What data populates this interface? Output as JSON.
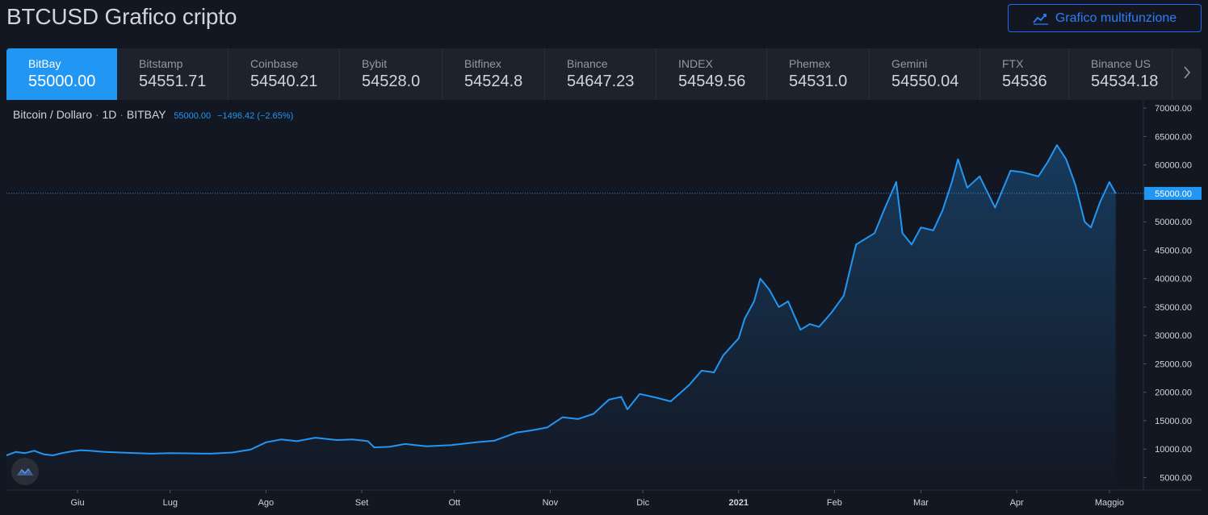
{
  "page": {
    "title": "BTCUSD Grafico cripto",
    "multi_chart_button": "Grafico multifunzione"
  },
  "exchanges": [
    {
      "name": "BitBay",
      "price": "55000.00",
      "active": true
    },
    {
      "name": "Bitstamp",
      "price": "54551.71"
    },
    {
      "name": "Coinbase",
      "price": "54540.21"
    },
    {
      "name": "Bybit",
      "price": "54528.0"
    },
    {
      "name": "Bitfinex",
      "price": "54524.8"
    },
    {
      "name": "Binance",
      "price": "54647.23"
    },
    {
      "name": "INDEX",
      "price": "54549.56"
    },
    {
      "name": "Phemex",
      "price": "54531.0"
    },
    {
      "name": "Gemini",
      "price": "54550.04"
    },
    {
      "name": "FTX",
      "price": "54536"
    },
    {
      "name": "Binance US",
      "price": "54534.18"
    }
  ],
  "legend": {
    "symbol": "Bitcoin / Dollaro",
    "interval": "1D",
    "exchange": "BITBAY",
    "last": "55000.00",
    "change": "−1496.42 (−2.65%)"
  },
  "icons": {
    "multi_chart": "chart-line-icon",
    "next": "chevron-right-icon",
    "logo": "tradingview-logo-icon"
  },
  "colors": {
    "background": "#131722",
    "line": "#2196f3",
    "active_tab": "#2196f3",
    "price_label_bg": "#2196f3",
    "grid": "#2a2e39"
  },
  "chart_data": {
    "type": "area",
    "title": "",
    "xlabel": "",
    "ylabel": "",
    "ylim": [
      2800,
      71300
    ],
    "yticks": [
      5000,
      10000,
      15000,
      20000,
      25000,
      30000,
      35000,
      40000,
      45000,
      50000,
      55000,
      60000,
      65000,
      70000
    ],
    "ytick_labels": [
      "5000.00",
      "10000.00",
      "15000.00",
      "20000.00",
      "25000.00",
      "30000.00",
      "35000.00",
      "40000.00",
      "45000.00",
      "50000.00",
      "55000.00",
      "60000.00",
      "65000.00",
      "70000.00"
    ],
    "xlim": [
      "2020-05-09",
      "2021-05-12"
    ],
    "xticks": [
      {
        "date": "2020-06-01",
        "label": "Giu",
        "bold": false
      },
      {
        "date": "2020-07-01",
        "label": "Lug",
        "bold": false
      },
      {
        "date": "2020-08-01",
        "label": "Ago",
        "bold": false
      },
      {
        "date": "2020-09-01",
        "label": "Set",
        "bold": false
      },
      {
        "date": "2020-10-01",
        "label": "Ott",
        "bold": false
      },
      {
        "date": "2020-11-01",
        "label": "Nov",
        "bold": false
      },
      {
        "date": "2020-12-01",
        "label": "Dic",
        "bold": false
      },
      {
        "date": "2021-01-01",
        "label": "2021",
        "bold": true
      },
      {
        "date": "2021-02-01",
        "label": "Feb",
        "bold": false
      },
      {
        "date": "2021-03-01",
        "label": "Mar",
        "bold": false
      },
      {
        "date": "2021-04-01",
        "label": "Apr",
        "bold": false
      },
      {
        "date": "2021-05-01",
        "label": "Maggio",
        "bold": false
      }
    ],
    "current_price": 55000,
    "current_price_label": "55000.00",
    "series": [
      {
        "x": [
          "2020-05-09",
          "2020-05-12",
          "2020-05-15",
          "2020-05-18",
          "2020-05-21",
          "2020-05-24",
          "2020-05-27",
          "2020-05-30",
          "2020-06-02",
          "2020-06-05",
          "2020-06-10",
          "2020-06-15",
          "2020-06-20",
          "2020-06-25",
          "2020-07-01",
          "2020-07-07",
          "2020-07-14",
          "2020-07-21",
          "2020-07-27",
          "2020-08-01",
          "2020-08-06",
          "2020-08-11",
          "2020-08-17",
          "2020-08-24",
          "2020-08-29",
          "2020-09-03",
          "2020-09-05",
          "2020-09-10",
          "2020-09-15",
          "2020-09-22",
          "2020-09-30",
          "2020-10-08",
          "2020-10-14",
          "2020-10-21",
          "2020-10-26",
          "2020-10-31",
          "2020-11-05",
          "2020-11-10",
          "2020-11-15",
          "2020-11-20",
          "2020-11-24",
          "2020-11-26",
          "2020-11-30",
          "2020-12-05",
          "2020-12-10",
          "2020-12-16",
          "2020-12-20",
          "2020-12-24",
          "2020-12-27",
          "2021-01-01",
          "2021-01-03",
          "2021-01-06",
          "2021-01-08",
          "2021-01-11",
          "2021-01-14",
          "2021-01-17",
          "2021-01-21",
          "2021-01-24",
          "2021-01-27",
          "2021-01-31",
          "2021-02-04",
          "2021-02-08",
          "2021-02-11",
          "2021-02-14",
          "2021-02-17",
          "2021-02-21",
          "2021-02-23",
          "2021-02-26",
          "2021-03-01",
          "2021-03-05",
          "2021-03-08",
          "2021-03-11",
          "2021-03-13",
          "2021-03-16",
          "2021-03-20",
          "2021-03-25",
          "2021-03-30",
          "2021-04-03",
          "2021-04-08",
          "2021-04-11",
          "2021-04-14",
          "2021-04-17",
          "2021-04-20",
          "2021-04-23",
          "2021-04-25",
          "2021-04-28",
          "2021-05-01",
          "2021-05-03"
        ],
        "y": [
          8900,
          9500,
          9300,
          9700,
          9100,
          8900,
          9300,
          9600,
          9800,
          9700,
          9500,
          9400,
          9300,
          9200,
          9300,
          9250,
          9200,
          9400,
          9900,
          11200,
          11700,
          11400,
          12000,
          11600,
          11700,
          11400,
          10300,
          10400,
          10900,
          10500,
          10700,
          11200,
          11500,
          12900,
          13300,
          13800,
          15600,
          15300,
          16200,
          18700,
          19200,
          17000,
          19700,
          19100,
          18400,
          21300,
          23800,
          23500,
          26500,
          29500,
          33000,
          36000,
          40000,
          38000,
          35000,
          36000,
          31000,
          32000,
          31500,
          34000,
          37000,
          46000,
          47000,
          48000,
          52000,
          57000,
          48000,
          46000,
          49000,
          48500,
          52000,
          57000,
          61000,
          56000,
          58000,
          52500,
          59000,
          58700,
          58000,
          60500,
          63500,
          61000,
          56500,
          50000,
          49000,
          53500,
          57000,
          55000
        ]
      }
    ]
  }
}
